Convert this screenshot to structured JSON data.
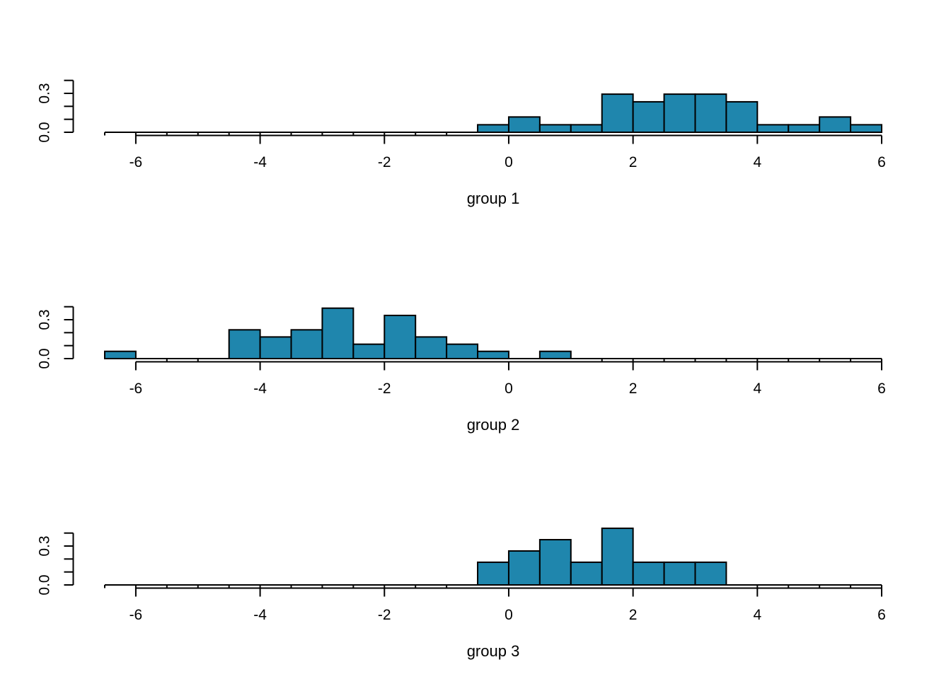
{
  "figure": {
    "background": "#ffffff",
    "bar_fill": "#1f86ad",
    "bar_stroke": "#000000",
    "axis_color": "#000000",
    "text_color": "#000000"
  },
  "chart_data": [
    {
      "type": "histogram",
      "title": "",
      "xlabel": "group 1",
      "ylabel": "",
      "bin_start": -6.5,
      "bin_width": 0.5,
      "densities": [
        0,
        0,
        0,
        0,
        0,
        0,
        0,
        0,
        0,
        0,
        0,
        0,
        0.058,
        0.118,
        0.058,
        0.058,
        0.294,
        0.235,
        0.294,
        0.294,
        0.235,
        0.058,
        0.058,
        0.118,
        0.058
      ],
      "x_ticks": [
        {
          "value": -6,
          "label": "-6"
        },
        {
          "value": -4,
          "label": "-4"
        },
        {
          "value": -2,
          "label": "-2"
        },
        {
          "value": 0,
          "label": "0"
        },
        {
          "value": 2,
          "label": "2"
        },
        {
          "value": 4,
          "label": "4"
        },
        {
          "value": 6,
          "label": "6"
        }
      ],
      "y_ticks": [
        0,
        0.1,
        0.2,
        0.3,
        0.4
      ],
      "y_tick_labels": [
        {
          "value": 0,
          "label": "0.0"
        },
        {
          "value": 0.3,
          "label": "0.3"
        }
      ],
      "xlim": [
        -6.5,
        6
      ],
      "ylim": [
        0,
        0.4
      ],
      "grid": false,
      "legend": null
    },
    {
      "type": "histogram",
      "title": "",
      "xlabel": "group 2",
      "ylabel": "",
      "bin_start": -6.5,
      "bin_width": 0.5,
      "densities": [
        0.056,
        0,
        0,
        0,
        0.222,
        0.167,
        0.222,
        0.389,
        0.111,
        0.333,
        0.167,
        0.111,
        0.056,
        0,
        0.056,
        0,
        0,
        0,
        0,
        0,
        0,
        0,
        0,
        0,
        0
      ],
      "x_ticks": [
        {
          "value": -6,
          "label": "-6"
        },
        {
          "value": -4,
          "label": "-4"
        },
        {
          "value": -2,
          "label": "-2"
        },
        {
          "value": 0,
          "label": "0"
        },
        {
          "value": 2,
          "label": "2"
        },
        {
          "value": 4,
          "label": "4"
        },
        {
          "value": 6,
          "label": "6"
        }
      ],
      "y_ticks": [
        0,
        0.1,
        0.2,
        0.3,
        0.4
      ],
      "y_tick_labels": [
        {
          "value": 0,
          "label": "0.0"
        },
        {
          "value": 0.3,
          "label": "0.3"
        }
      ],
      "xlim": [
        -6.5,
        6
      ],
      "ylim": [
        0,
        0.4
      ],
      "grid": false,
      "legend": null
    },
    {
      "type": "histogram",
      "title": "",
      "xlabel": "group 3",
      "ylabel": "",
      "bin_start": -6.5,
      "bin_width": 0.5,
      "densities": [
        0,
        0,
        0,
        0,
        0,
        0,
        0,
        0,
        0,
        0,
        0,
        0,
        0.175,
        0.262,
        0.349,
        0.175,
        0.437,
        0.175,
        0.175,
        0.175,
        0,
        0,
        0,
        0,
        0
      ],
      "x_ticks": [
        {
          "value": -6,
          "label": "-6"
        },
        {
          "value": -4,
          "label": "-4"
        },
        {
          "value": -2,
          "label": "-2"
        },
        {
          "value": 0,
          "label": "0"
        },
        {
          "value": 2,
          "label": "2"
        },
        {
          "value": 4,
          "label": "4"
        },
        {
          "value": 6,
          "label": "6"
        }
      ],
      "y_ticks": [
        0,
        0.1,
        0.2,
        0.3,
        0.4
      ],
      "y_tick_labels": [
        {
          "value": 0,
          "label": "0.0"
        },
        {
          "value": 0.3,
          "label": "0.3"
        }
      ],
      "xlim": [
        -6.5,
        6
      ],
      "ylim": [
        0,
        0.4
      ],
      "grid": false,
      "legend": null
    }
  ]
}
